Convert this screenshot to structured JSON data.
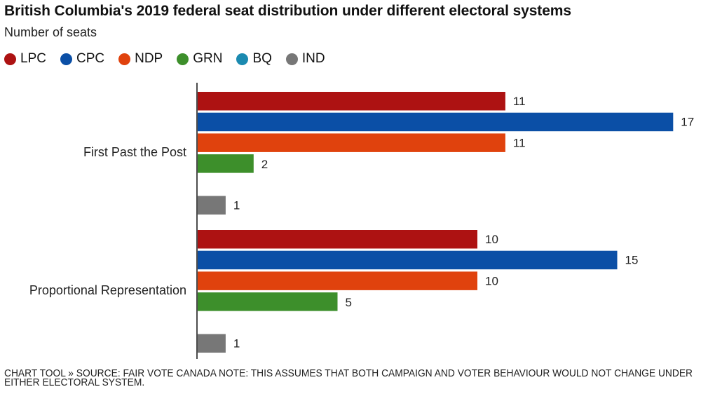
{
  "chart_data": {
    "type": "bar",
    "orientation": "horizontal",
    "title": "British Columbia's 2019 federal seat distribution under different electoral systems",
    "subtitle": "Number of seats",
    "xlabel": "",
    "ylabel": "",
    "categories": [
      "First Past the Post",
      "Proportional Representation"
    ],
    "series": [
      {
        "name": "LPC",
        "color": "#ad1212",
        "values": [
          11,
          10
        ]
      },
      {
        "name": "CPC",
        "color": "#0b4fa6",
        "values": [
          17,
          15
        ]
      },
      {
        "name": "NDP",
        "color": "#e0420d",
        "values": [
          11,
          10
        ]
      },
      {
        "name": "GRN",
        "color": "#3d8f2b",
        "values": [
          2,
          5
        ]
      },
      {
        "name": "BQ",
        "color": "#1b8ab0",
        "values": [
          0,
          0
        ]
      },
      {
        "name": "IND",
        "color": "#777777",
        "values": [
          1,
          1
        ]
      }
    ],
    "data_labels": true,
    "legend_position": "top-left",
    "grid": false,
    "xlim": [
      0,
      17
    ]
  },
  "footer": "CHART TOOL » SOURCE: FAIR VOTE CANADA NOTE: THIS ASSUMES THAT BOTH CAMPAIGN AND VOTER BEHAVIOUR WOULD NOT CHANGE UNDER EITHER ELECTORAL SYSTEM."
}
